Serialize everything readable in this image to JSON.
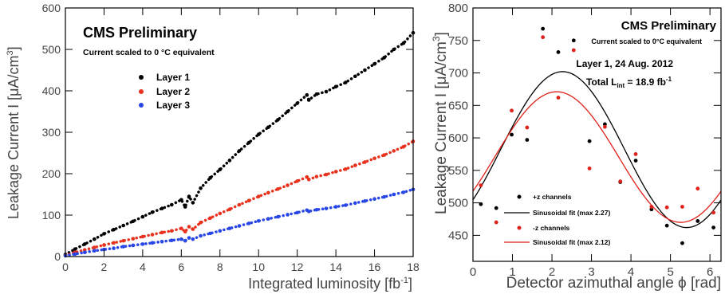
{
  "left_panel": {
    "title": "CMS Preliminary",
    "subtitle": "Current scaled to 0   °C equivalent",
    "legend": [
      "Layer 1",
      "Layer 2",
      "Layer 3"
    ],
    "xlabel_main": "Integrated luminosity [fb",
    "xlabel_sup": "-1",
    "xlabel_end": "]",
    "ylabel_main": "Leakage Current I [μA/cm",
    "ylabel_sup": "3",
    "ylabel_end": "]"
  },
  "right_panel": {
    "title": "CMS Preliminary",
    "subtitle": "Current scaled to 0°C equivalent",
    "info_line1": "Layer 1, 24 Aug. 2012",
    "info_total": "Total L",
    "info_sub": "int",
    "info_eq": " = 18.9 fb",
    "info_sup": "-1",
    "legend": [
      "+z channels",
      "Sinusoidal fit (max 2.27)",
      "-z channels",
      "Sinusoidal fit (max 2.12)"
    ],
    "xlabel": "Detector azimuthal angle ϕ [rad]",
    "ylabel_main": "Leakage Current I [μA/cm",
    "ylabel_sup": "3",
    "ylabel_end": "]"
  },
  "colors": {
    "layer1": "#000000",
    "layer2": "#e8321e",
    "layer3": "#2846e6",
    "plus_z": "#000000",
    "minus_z": "#e0201a"
  },
  "chart_data": [
    {
      "type": "scatter",
      "xlim": [
        0,
        18
      ],
      "ylim": [
        0,
        600
      ],
      "xticks": [
        0,
        2,
        4,
        6,
        8,
        10,
        12,
        14,
        16,
        18
      ],
      "yticks": [
        0,
        100,
        200,
        300,
        400,
        500,
        600
      ],
      "grid": false,
      "legend_position": "top-left",
      "series": [
        {
          "name": "Layer 1",
          "color": "#000000",
          "x": [
            0,
            0.5,
            1,
            1.5,
            2,
            2.5,
            3,
            3.5,
            4,
            4.5,
            5,
            5.5,
            6,
            6.2,
            6.4,
            6.6,
            7,
            7.5,
            8,
            8.5,
            9,
            9.5,
            10,
            10.5,
            11,
            11.5,
            12,
            12.5,
            12.6,
            13,
            13.5,
            14,
            14.5,
            15,
            15.5,
            16,
            16.5,
            17,
            17.5,
            18
          ],
          "y": [
            5,
            18,
            30,
            42,
            55,
            65,
            75,
            85,
            96,
            107,
            116,
            125,
            137,
            120,
            145,
            130,
            165,
            190,
            210,
            232,
            255,
            275,
            295,
            312,
            330,
            350,
            370,
            390,
            378,
            392,
            398,
            410,
            420,
            435,
            450,
            465,
            480,
            500,
            515,
            540
          ]
        },
        {
          "name": "Layer 2",
          "color": "#e8321e",
          "x": [
            0,
            0.5,
            1,
            1.5,
            2,
            2.5,
            3,
            3.5,
            4,
            4.5,
            5,
            5.5,
            6,
            6.2,
            6.4,
            6.6,
            7,
            7.5,
            8,
            8.5,
            9,
            9.5,
            10,
            10.5,
            11,
            11.5,
            12,
            12.5,
            12.6,
            13,
            13.5,
            14,
            14.5,
            15,
            15.5,
            16,
            16.5,
            17,
            17.5,
            18
          ],
          "y": [
            3,
            10,
            16,
            22,
            28,
            33,
            38,
            43,
            48,
            53,
            58,
            62,
            68,
            60,
            72,
            66,
            82,
            93,
            104,
            114,
            125,
            135,
            145,
            154,
            163,
            172,
            182,
            192,
            186,
            193,
            198,
            205,
            211,
            220,
            228,
            237,
            245,
            255,
            265,
            278
          ]
        },
        {
          "name": "Layer 3",
          "color": "#2846e6",
          "x": [
            0,
            0.5,
            1,
            1.5,
            2,
            2.5,
            3,
            3.5,
            4,
            4.5,
            5,
            5.5,
            6,
            6.2,
            6.4,
            6.6,
            7,
            7.5,
            8,
            8.5,
            9,
            9.5,
            10,
            10.5,
            11,
            11.5,
            12,
            12.5,
            12.6,
            13,
            13.5,
            14,
            14.5,
            15,
            15.5,
            16,
            16.5,
            17,
            17.5,
            18
          ],
          "y": [
            2,
            6,
            10,
            14,
            17,
            20,
            24,
            27,
            30,
            33,
            36,
            39,
            42,
            38,
            45,
            42,
            50,
            56,
            62,
            68,
            74,
            80,
            86,
            91,
            96,
            101,
            106,
            112,
            109,
            113,
            116,
            120,
            124,
            129,
            134,
            139,
            144,
            150,
            155,
            162
          ]
        }
      ]
    },
    {
      "type": "scatter",
      "xlim": [
        0,
        6.28
      ],
      "ylim": [
        410,
        800
      ],
      "xticks": [
        0,
        1,
        2,
        3,
        4,
        5,
        6
      ],
      "yticks": [
        450,
        500,
        550,
        600,
        650,
        700,
        750,
        800
      ],
      "grid": false,
      "legend_position": "bottom-left",
      "series": [
        {
          "name": "+z channels",
          "color": "#000000",
          "x": [
            0.2,
            0.59,
            0.98,
            1.37,
            1.77,
            2.16,
            2.55,
            2.95,
            3.34,
            3.73,
            4.12,
            4.52,
            4.91,
            5.3,
            5.69,
            6.09
          ],
          "y": [
            498,
            492,
            605,
            597,
            768,
            732,
            750,
            595,
            621,
            532,
            565,
            490,
            465,
            438,
            472,
            462
          ]
        },
        {
          "name": "Sinusoidal fit (max 2.27)",
          "color": "#000000",
          "kind": "fit",
          "peak": 2.27,
          "ymax": 702,
          "ymin": 462
        },
        {
          "name": "-z channels",
          "color": "#e0201a",
          "x": [
            0.2,
            0.59,
            0.98,
            1.37,
            1.77,
            2.16,
            2.55,
            2.95,
            3.34,
            3.73,
            4.12,
            4.52,
            4.91,
            5.3,
            5.69,
            6.09
          ],
          "y": [
            527,
            470,
            642,
            616,
            755,
            662,
            735,
            553,
            617,
            533,
            575,
            494,
            493,
            494,
            522,
            485
          ]
        },
        {
          "name": "Sinusoidal fit (max 2.12)",
          "color": "#e0201a",
          "kind": "fit",
          "peak": 2.12,
          "ymax": 671,
          "ymin": 470
        }
      ]
    }
  ]
}
